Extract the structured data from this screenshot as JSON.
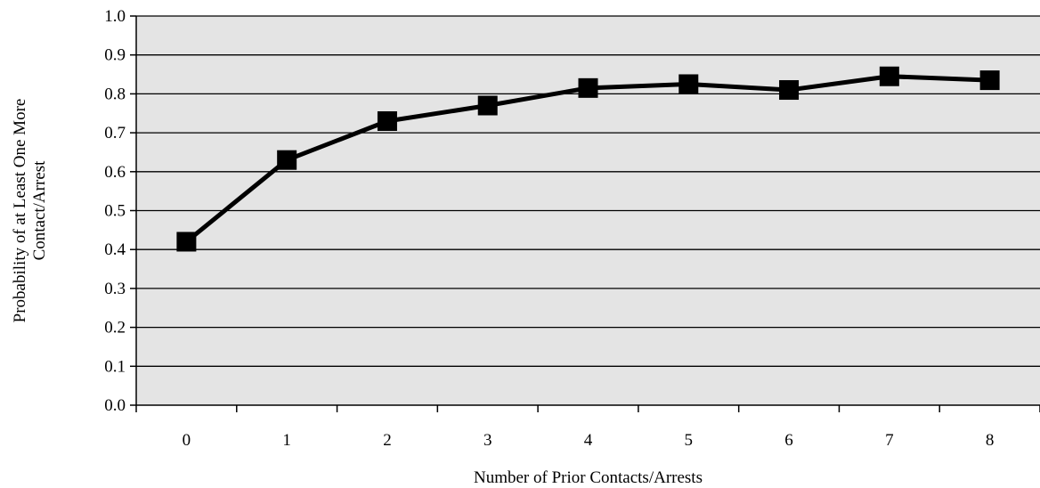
{
  "chart_data": {
    "type": "line",
    "title": "",
    "xlabel": "Number of Prior Contacts/Arrests",
    "ylabel_lines": [
      "Probability of at Least One More",
      "Contact/Arrest"
    ],
    "x": [
      "0",
      "1",
      "2",
      "3",
      "4",
      "5",
      "6",
      "7",
      "8"
    ],
    "series": [
      {
        "values": [
          0.42,
          0.63,
          0.73,
          0.77,
          0.815,
          0.825,
          0.81,
          0.845,
          0.835
        ]
      }
    ],
    "ylim": [
      0,
      1.0
    ],
    "yticks": [
      "0.0",
      "0.1",
      "0.2",
      "0.3",
      "0.4",
      "0.5",
      "0.6",
      "0.7",
      "0.8",
      "0.9",
      "1.0"
    ],
    "grid": true,
    "legend": "none",
    "colors": {
      "plot_background": "#e4e4e4",
      "line": "#000000",
      "grid": "#000000",
      "marker": "#000000"
    }
  }
}
